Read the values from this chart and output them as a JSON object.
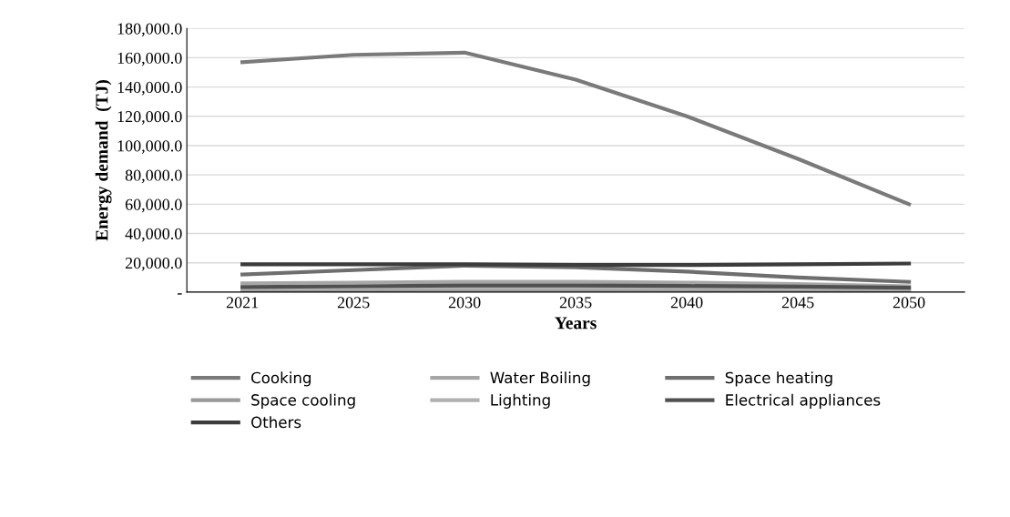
{
  "chart_data": {
    "type": "line",
    "xlabel": "Years",
    "ylabel": "Energy demand  (TJ)",
    "categories": [
      "2021",
      "2025",
      "2030",
      "2035",
      "2040",
      "2045",
      "2050"
    ],
    "series": [
      {
        "name": "Cooking",
        "color": "#7a7a7a",
        "values": [
          157000,
          162000,
          163500,
          145000,
          120000,
          91000,
          60000
        ]
      },
      {
        "name": "Water Boiling",
        "color": "#a6a6a6",
        "values": [
          6000,
          6500,
          7000,
          7000,
          6500,
          5500,
          4000
        ]
      },
      {
        "name": "Space heating",
        "color": "#6e6e6e",
        "values": [
          12000,
          15000,
          18000,
          17000,
          14000,
          10000,
          7000
        ]
      },
      {
        "name": "Space cooling",
        "color": "#9a9a9a",
        "values": [
          1000,
          1200,
          1500,
          1500,
          1400,
          1200,
          1000
        ]
      },
      {
        "name": "Lighting",
        "color": "#b0b0b0",
        "values": [
          2500,
          2800,
          3000,
          3000,
          2800,
          2500,
          2000
        ]
      },
      {
        "name": "Electrical appliances",
        "color": "#505050",
        "values": [
          3500,
          4000,
          4500,
          4500,
          4200,
          3800,
          3000
        ]
      },
      {
        "name": "Others",
        "color": "#3c3c3c",
        "values": [
          19000,
          19000,
          19000,
          18500,
          18500,
          19000,
          19500
        ]
      }
    ],
    "ylim": [
      0,
      180000
    ],
    "yticks": [
      {
        "value": 0,
        "label": "-"
      },
      {
        "value": 20000,
        "label": "20,000.0"
      },
      {
        "value": 40000,
        "label": "40,000.0"
      },
      {
        "value": 60000,
        "label": "60,000.0"
      },
      {
        "value": 80000,
        "label": "80,000.0"
      },
      {
        "value": 100000,
        "label": "100,000.0"
      },
      {
        "value": 120000,
        "label": "120,000.0"
      },
      {
        "value": 140000,
        "label": "140,000.0"
      },
      {
        "value": 160000,
        "label": "160,000.0"
      },
      {
        "value": 180000,
        "label": "180,000.0"
      }
    ],
    "grid": "y",
    "legend": "bottom",
    "marker": "none",
    "line_style": "solid"
  }
}
